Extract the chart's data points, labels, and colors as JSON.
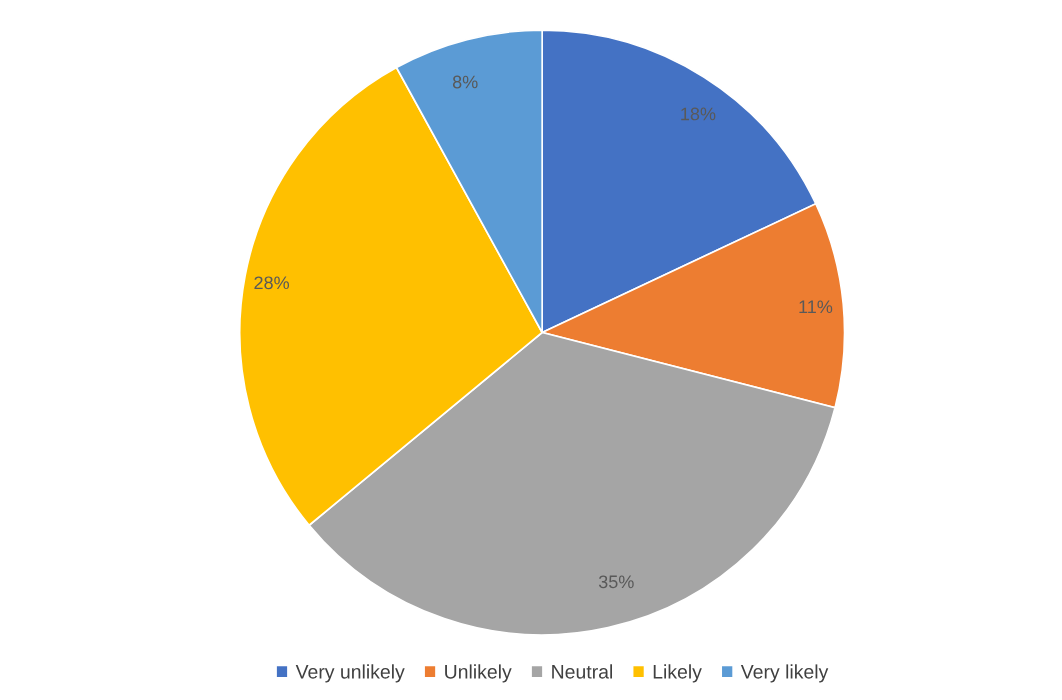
{
  "chart_data": {
    "type": "pie",
    "categories": [
      "Very unlikely",
      "Unlikely",
      "Neutral",
      "Likely",
      "Very likely"
    ],
    "values": [
      18,
      11,
      35,
      28,
      8
    ],
    "colors": [
      "#4472c4",
      "#ed7d31",
      "#a5a5a5",
      "#ffc000",
      "#5b9bd5"
    ],
    "value_labels": [
      "18%",
      "11%",
      "35%",
      "28%",
      "8%"
    ],
    "legend": "bottom"
  }
}
